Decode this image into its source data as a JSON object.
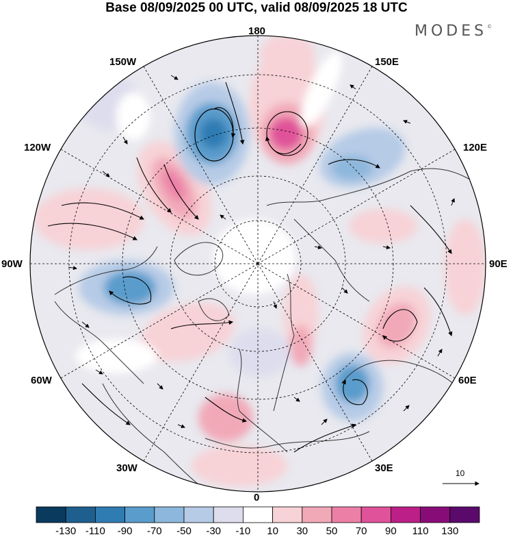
{
  "header": {
    "title": "Base 08/09/2025 00 UTC, valid 08/09/2025 18 UTC",
    "brand": "MODES",
    "brand_mark": "©"
  },
  "map": {
    "projection": "north-polar-stereographic",
    "longitude_labels": {
      "top": "180",
      "top_left": "150W",
      "top_right": "150E",
      "upper_left": "120W",
      "upper_right": "120E",
      "left": "90W",
      "right": "90E",
      "lower_left": "60W",
      "lower_right": "60E",
      "bottom_left": "30W",
      "bottom_right": "30E",
      "bottom": "0"
    },
    "reference_vector": {
      "label": "10",
      "icon": "arrow-right-icon"
    }
  },
  "colorbar": {
    "colors": [
      "#0a3a5e",
      "#1e5f8e",
      "#2f7cb3",
      "#5a9ccc",
      "#8db7dc",
      "#b6cbe6",
      "#dddded",
      "#ffffff",
      "#f7d2d6",
      "#f1a9b8",
      "#ec7fa6",
      "#e0539a",
      "#bc1f87",
      "#880c78",
      "#5a0a6b"
    ],
    "tick_labels": [
      "-130",
      "-110",
      "-90",
      "-70",
      "-50",
      "-30",
      "-10",
      "10",
      "30",
      "50",
      "70",
      "90",
      "110",
      "130"
    ]
  }
}
